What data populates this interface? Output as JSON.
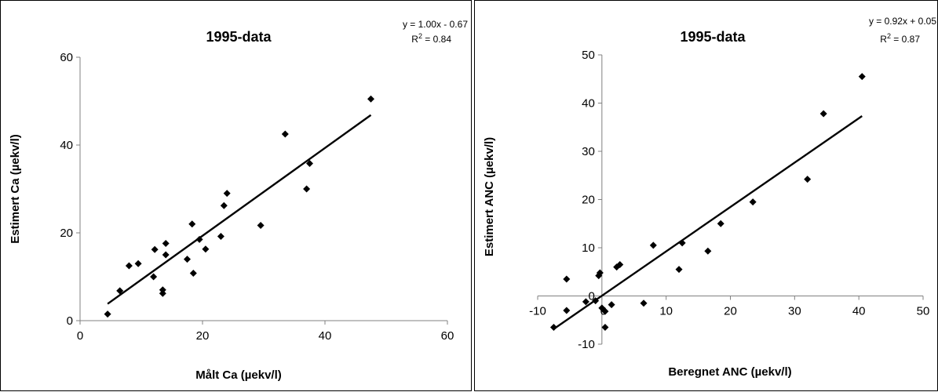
{
  "chart_data": [
    {
      "type": "scatter",
      "title": "1995-data",
      "xlabel": "Målt Ca (µekv/l)",
      "ylabel": "Estimert Ca (µekv/l)",
      "xlim": [
        0,
        60
      ],
      "ylim": [
        0,
        60
      ],
      "xticks": [
        0,
        20,
        40,
        60
      ],
      "yticks": [
        0,
        20,
        40,
        60
      ],
      "grid": false,
      "equation": "y = 1.00x - 0.67",
      "r2_label": "R",
      "r2_sup": "2",
      "r2_value": " = 0.84",
      "trendline": {
        "slope": 1.0,
        "intercept": -0.67,
        "x_range": [
          4.5,
          47.5
        ]
      },
      "points": [
        {
          "x": 4.5,
          "y": 1.5
        },
        {
          "x": 6.5,
          "y": 6.8
        },
        {
          "x": 8,
          "y": 12.5
        },
        {
          "x": 9.5,
          "y": 13
        },
        {
          "x": 12,
          "y": 10
        },
        {
          "x": 12.2,
          "y": 16.2
        },
        {
          "x": 13.5,
          "y": 6.2
        },
        {
          "x": 13.5,
          "y": 7
        },
        {
          "x": 14,
          "y": 15
        },
        {
          "x": 14,
          "y": 17.6
        },
        {
          "x": 17.5,
          "y": 14
        },
        {
          "x": 18.3,
          "y": 22
        },
        {
          "x": 18.5,
          "y": 10.8
        },
        {
          "x": 19.5,
          "y": 18.5
        },
        {
          "x": 20.5,
          "y": 16.3
        },
        {
          "x": 23,
          "y": 19.2
        },
        {
          "x": 23.5,
          "y": 26.2
        },
        {
          "x": 24,
          "y": 29
        },
        {
          "x": 29.5,
          "y": 21.7
        },
        {
          "x": 33.5,
          "y": 42.5
        },
        {
          "x": 37,
          "y": 30
        },
        {
          "x": 37.5,
          "y": 35.8
        },
        {
          "x": 47.5,
          "y": 50.5
        }
      ]
    },
    {
      "type": "scatter",
      "title": "1995-data",
      "xlabel": "Beregnet ANC (µekv/l)",
      "ylabel": "Estimert ANC (µekv/l)",
      "xlim": [
        -10,
        50
      ],
      "ylim": [
        -10,
        50
      ],
      "xticks": [
        -10,
        0,
        10,
        20,
        30,
        40,
        50
      ],
      "yticks": [
        -10,
        0,
        10,
        20,
        30,
        40,
        50
      ],
      "grid": false,
      "equation": "y = 0.92x + 0.05",
      "r2_label": "R",
      "r2_sup": "2",
      "r2_value": " = 0.87",
      "trendline": {
        "slope": 0.92,
        "intercept": 0.05,
        "x_range": [
          -7.5,
          40.5
        ]
      },
      "points": [
        {
          "x": -7.5,
          "y": -6.5
        },
        {
          "x": -5.5,
          "y": 3.5
        },
        {
          "x": -5.5,
          "y": -3
        },
        {
          "x": -2.5,
          "y": -1.2
        },
        {
          "x": -1,
          "y": -1
        },
        {
          "x": -0.5,
          "y": 4.2
        },
        {
          "x": -0.3,
          "y": 4.8
        },
        {
          "x": 0,
          "y": -2.5
        },
        {
          "x": 0.5,
          "y": -3.2
        },
        {
          "x": 0.5,
          "y": -6.5
        },
        {
          "x": 1.5,
          "y": -1.8
        },
        {
          "x": 2.3,
          "y": 6
        },
        {
          "x": 2.8,
          "y": 6.5
        },
        {
          "x": 6.5,
          "y": -1.5
        },
        {
          "x": 8,
          "y": 10.5
        },
        {
          "x": 12,
          "y": 5.5
        },
        {
          "x": 12.5,
          "y": 11
        },
        {
          "x": 16.5,
          "y": 9.3
        },
        {
          "x": 18.5,
          "y": 15
        },
        {
          "x": 23.5,
          "y": 19.5
        },
        {
          "x": 32,
          "y": 24.2
        },
        {
          "x": 34.5,
          "y": 37.8
        },
        {
          "x": 40.5,
          "y": 45.5
        }
      ]
    }
  ]
}
